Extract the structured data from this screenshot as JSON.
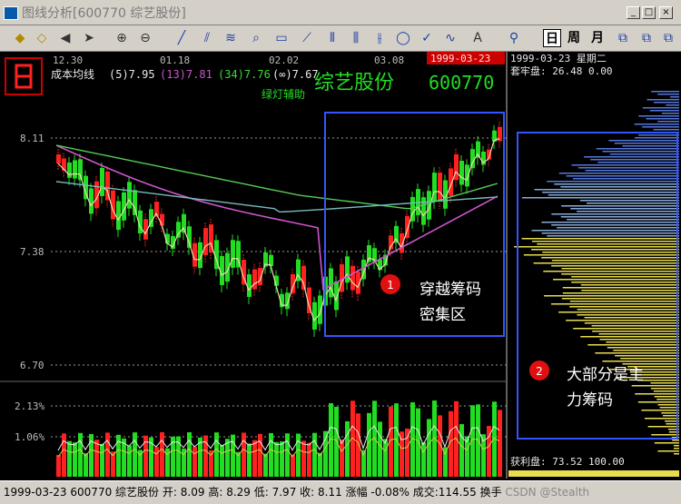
{
  "window": {
    "title": "图线分析[600770 综艺股份]",
    "min": "_",
    "max": "□",
    "close": "×"
  },
  "toolbar": {
    "periods": [
      "日",
      "周",
      "月"
    ]
  },
  "stock": {
    "name": "综艺股份",
    "code": "600770",
    "date_box": "1999-03-23",
    "signal": "绿灯辅助"
  },
  "ma_legend": {
    "label": "成本均线",
    "items": [
      {
        "text": "(5)7.95",
        "color": "#e8e8e8"
      },
      {
        "text": "(13)7.81",
        "color": "#cc55cc"
      },
      {
        "text": "(34)7.76",
        "color": "#33dd33"
      },
      {
        "text": "(∞)7.67",
        "color": "#e8e8e8"
      }
    ]
  },
  "date_axis": [
    "12.30",
    "01.18",
    "02.02",
    "03.08"
  ],
  "price_axis": [
    "8.11",
    "7.38",
    "6.70"
  ],
  "volume_axis": [
    "2.13%",
    "1.06%"
  ],
  "right_panel": {
    "date": "1999-03-23 星期二",
    "cost_label": "套牢盘: 26.48 0.00",
    "profit_label": "获利盘: 73.52 100.00"
  },
  "annotations": [
    {
      "num": "1",
      "line1": "穿越筹码",
      "line2": "密集区"
    },
    {
      "num": "2",
      "line1": "大部分是主",
      "line2": "力筹码"
    }
  ],
  "status": {
    "date": "1999-03-23",
    "code": "600770",
    "name": "综艺股份",
    "open_label": "开:",
    "open": "8.09",
    "high_label": "高:",
    "high": "8.29",
    "low_label": "低:",
    "low": "7.97",
    "close_label": "收:",
    "close": "8.11",
    "change_label": "涨幅",
    "change": "-0.08%",
    "vol_label": "成交:",
    "vol": "114.55",
    "turn_label": "换手",
    "watermark": "CSDN @Stealth"
  },
  "colors": {
    "up": "#ff2020",
    "down": "#22dd22",
    "box": "#3355ff",
    "grid": "#9a9a9a"
  }
}
